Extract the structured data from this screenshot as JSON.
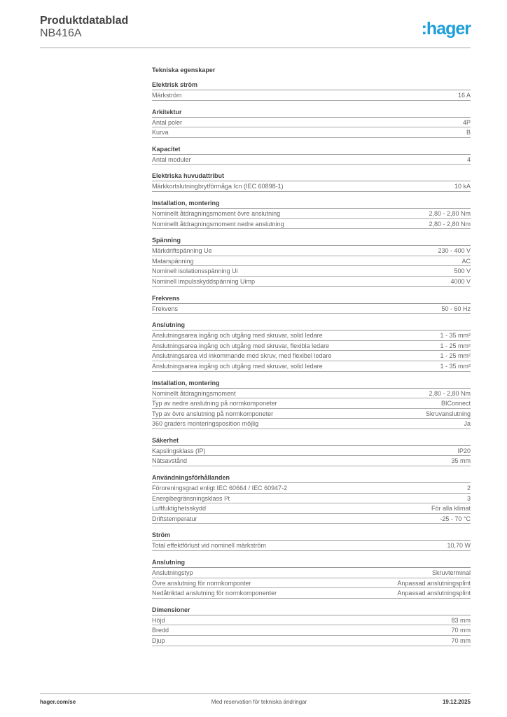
{
  "header": {
    "title": "Produktdatablad",
    "subtitle": "NB416A",
    "logo": ":hager"
  },
  "main": {
    "heading": "Tekniska egenskaper",
    "sections": [
      {
        "title": "Elektrisk ström",
        "rows": [
          [
            "Märkström",
            "16 A"
          ]
        ]
      },
      {
        "title": "Arkitektur",
        "rows": [
          [
            "Antal poler",
            "4P"
          ],
          [
            "Kurva",
            "B"
          ]
        ]
      },
      {
        "title": "Kapacitet",
        "rows": [
          [
            "Antal moduler",
            "4"
          ]
        ]
      },
      {
        "title": "Elektriska huvudattribut",
        "rows": [
          [
            "Märkkortslutningbrytförmåga Icn (IEC 60898-1)",
            "10 kA"
          ]
        ]
      },
      {
        "title": "Installation, montering",
        "rows": [
          [
            "Nominellt åtdragningsmoment övre anslutning",
            "2,80 - 2,80 Nm"
          ],
          [
            "Nominellt åtdragningsmoment nedre anslutning",
            "2,80 - 2,80 Nm"
          ]
        ]
      },
      {
        "title": "Spänning",
        "rows": [
          [
            "Märkdriftspänning Ue",
            "230 - 400 V"
          ],
          [
            "Matarspänning",
            "AC"
          ],
          [
            "Nominell isolationsspänning Ui",
            "500 V"
          ],
          [
            "Nominell impulsskyddspänning Uimp",
            "4000 V"
          ]
        ]
      },
      {
        "title": "Frekvens",
        "rows": [
          [
            "Frekvens",
            "50 - 60 Hz"
          ]
        ]
      },
      {
        "title": "Anslutning",
        "rows": [
          [
            "Anslutningsarea ingång och utgång med skruvar, solid ledare",
            "1 - 35 mm²"
          ],
          [
            "Anslutningsarea ingång och utgång med skruvar, flexibla ledare",
            "1 - 25 mm²"
          ],
          [
            "Anslutningsarea vid inkommande med skruv, med flexibel ledare",
            "1 - 25 mm²"
          ],
          [
            "Anslutningsarea ingång och utgång med skruvar, solid ledare",
            "1 - 35 mm²"
          ]
        ]
      },
      {
        "title": "Installation, montering",
        "rows": [
          [
            "Nominellt åtdragningsmoment",
            "2,80 - 2,80 Nm"
          ],
          [
            "Typ av nedre anslutning på normkomponeter",
            "BIConnect"
          ],
          [
            "Typ av övre anslutning på normkomponeter",
            "Skruvanslutning"
          ],
          [
            "360 graders monteringsposition möjlig",
            "Ja"
          ]
        ]
      },
      {
        "title": "Säkerhet",
        "rows": [
          [
            "Kapslingsklass (IP)",
            "IP20"
          ],
          [
            "Nätsavstånd",
            "35 mm"
          ]
        ]
      },
      {
        "title": "Användningsförhållanden",
        "rows": [
          [
            "Föroreningsgrad enligt IEC 60664 / IEC 60947-2",
            "2"
          ],
          [
            "Energibegränsningsklass I²t",
            "3"
          ],
          [
            "Luftfuktighetsskydd",
            "För alla klimat"
          ],
          [
            "Driftstemperatur",
            "-25 - 70 °C"
          ]
        ]
      },
      {
        "title": "Ström",
        "rows": [
          [
            "Total effektförlust vid nominell märkström",
            "10,70 W"
          ]
        ]
      },
      {
        "title": "Anslutning",
        "rows": [
          [
            "Anslutningstyp",
            "Skruvterminal"
          ],
          [
            "Övre anslutning för normkomponter",
            "Anpassad anslutningsplint"
          ],
          [
            "Nedåtriktad anslutning för normkomponenter",
            "Anpassad anslutningsplint"
          ]
        ]
      },
      {
        "title": "Dimensioner",
        "rows": [
          [
            "Höjd",
            "83 mm"
          ],
          [
            "Bredd",
            "70 mm"
          ],
          [
            "Djup",
            "70 mm"
          ]
        ]
      }
    ]
  },
  "footer": {
    "website": "hager.com/se",
    "note": "Med reservation för tekniska ändringar",
    "date": "19.12.2025"
  },
  "colors": {
    "brand": "#1d9fd9"
  }
}
